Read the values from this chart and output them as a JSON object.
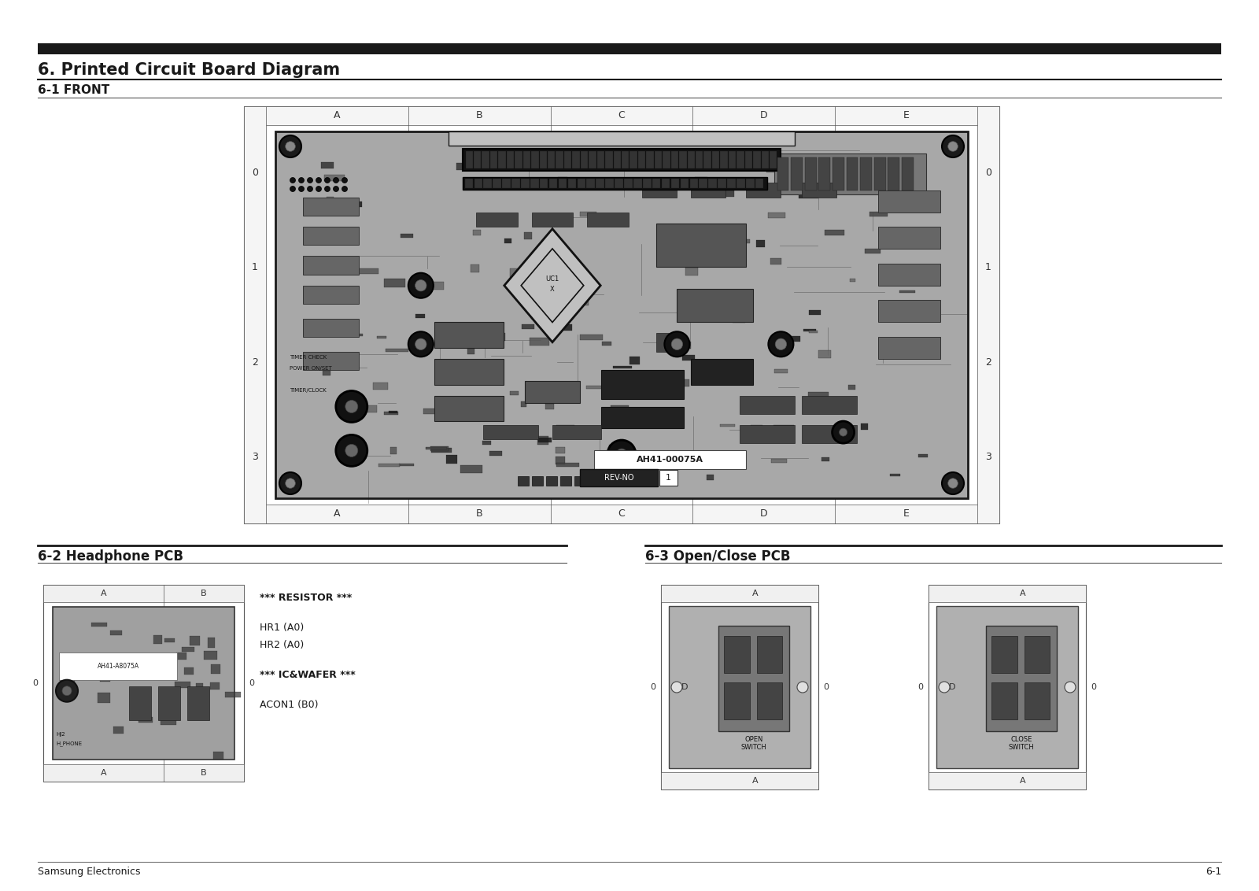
{
  "title": "6. Printed Circuit Board Diagram",
  "title_bar_color": "#1a1a1a",
  "section1_label": "6-1 FRONT",
  "section2_label": "6-2 Headphone PCB",
  "section3_label": "6-3 Open/Close PCB",
  "footer_left": "Samsung Electronics",
  "footer_right": "6-1",
  "bg_color": "#ffffff",
  "text_color": "#1a1a1a",
  "pcb_bg": "#a8a8a8",
  "pcb_border": "#333333",
  "pcb_dark": "#1a1a1a",
  "grid_label_color": "#333333",
  "part_number": "AH41-00075A",
  "rev_text": "REV-NO",
  "rev_num": "1",
  "col_labels_main": [
    "A",
    "B",
    "C",
    "D",
    "E"
  ],
  "row_labels_main": [
    "0",
    "1",
    "2",
    "3"
  ],
  "resistor_text": "*** RESISTOR ***",
  "ic_wafer_text": "*** IC&WAFER ***",
  "hr1_text": "HR1 (A0)",
  "hr2_text": "HR2 (A0)",
  "acon1_text": "ACON1 (B0)",
  "open_switch_text": "OPEN\nSWITCH",
  "close_switch_text": "CLOSE\nSWITCH"
}
